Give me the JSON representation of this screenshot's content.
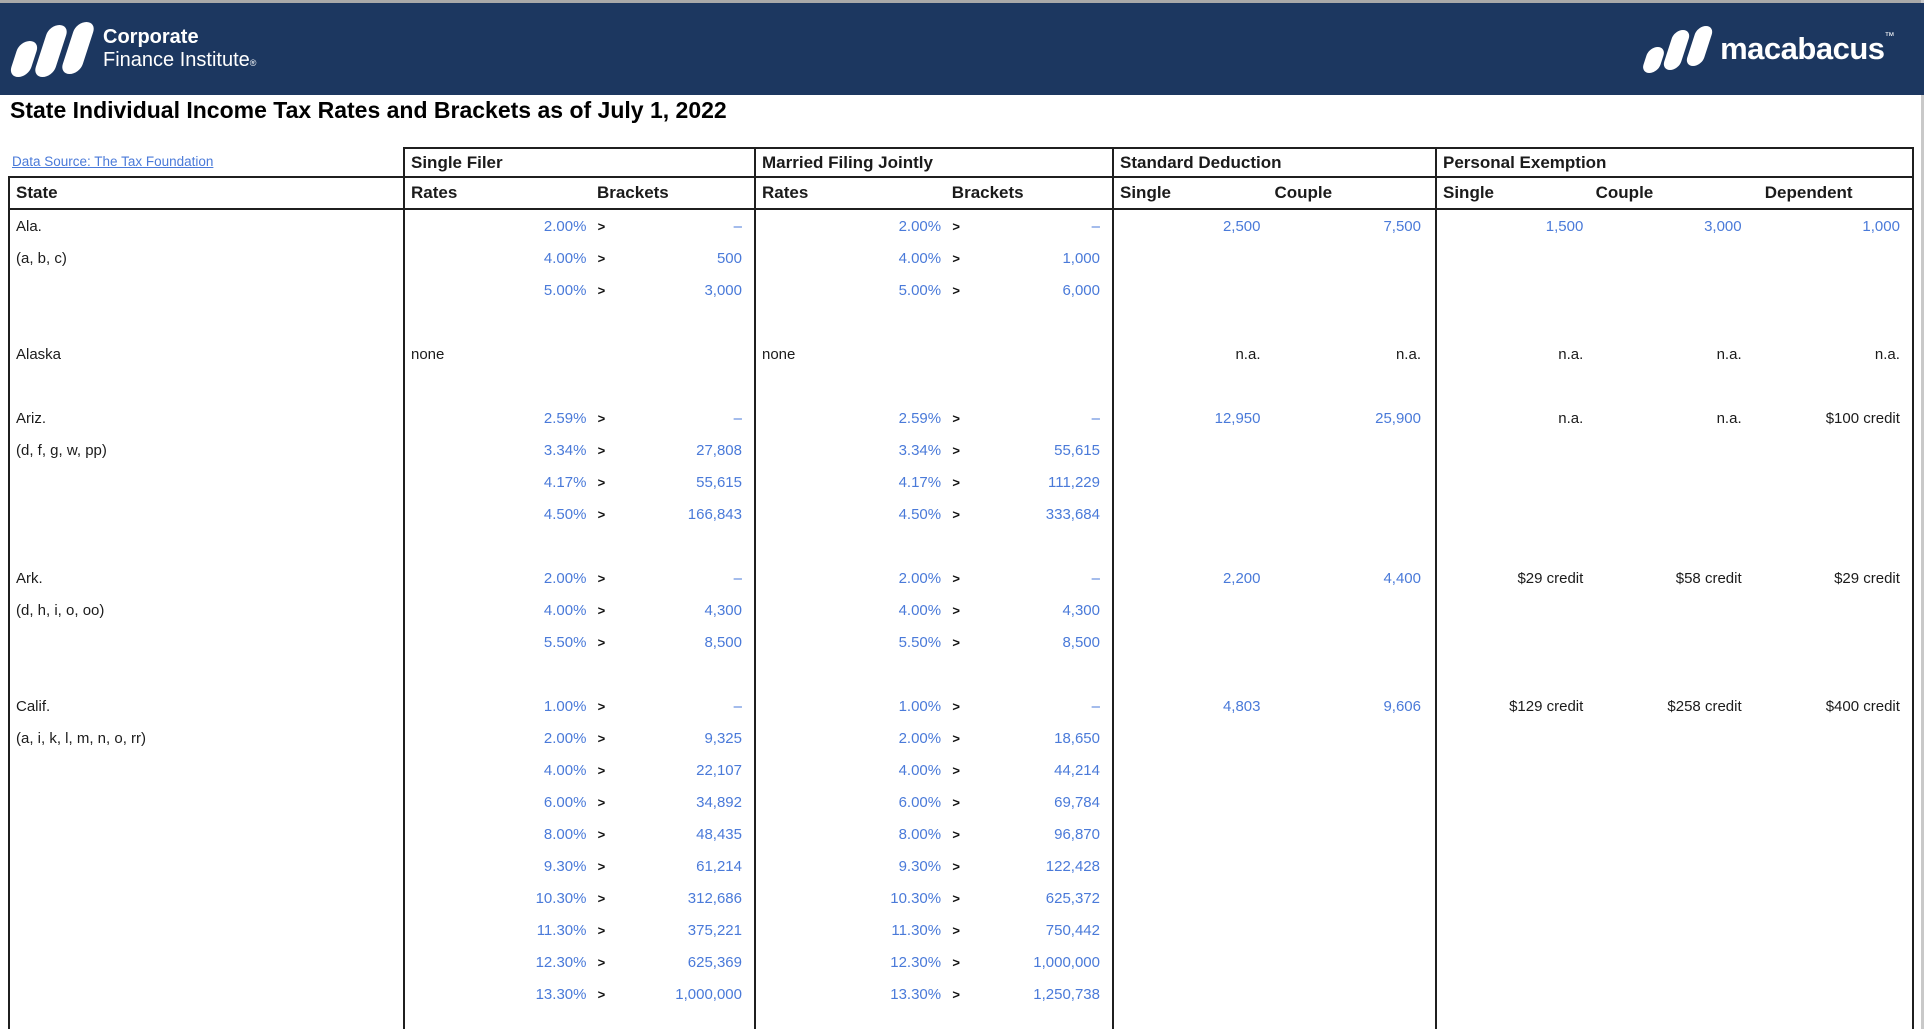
{
  "banner": {
    "cfi_line1": "Corporate",
    "cfi_line2": "Finance Institute",
    "cfi_mark": "®",
    "macabacus_text": "macabacus",
    "macabacus_mark": "™"
  },
  "page": {
    "title": "State Individual Income Tax Rates and Brackets as of July 1, 2022",
    "data_source_link": "Data Source: The Tax Foundation"
  },
  "colors": {
    "banner_navy": "#1c3760",
    "value_blue": "#4a7ad9",
    "text_black": "#1b1b1b",
    "border_black": "#1f1f1f"
  },
  "table": {
    "state_header": "State",
    "sections": [
      {
        "label": "Single Filer",
        "sub": [
          "Rates",
          "Brackets"
        ]
      },
      {
        "label": "Married Filing Jointly",
        "sub": [
          "Rates",
          "Brackets"
        ]
      },
      {
        "label": "Standard Deduction",
        "sub": [
          "Single",
          "Couple"
        ]
      },
      {
        "label": "Personal Exemption",
        "sub": [
          "Single",
          "Couple",
          "Dependent"
        ]
      }
    ],
    "rows": [
      {
        "state": "Ala.",
        "notes": "(a, b, c)",
        "single": {
          "entries": [
            [
              "2.00%",
              "–"
            ],
            [
              "4.00%",
              "500"
            ],
            [
              "5.00%",
              "3,000"
            ]
          ]
        },
        "married": {
          "entries": [
            [
              "2.00%",
              "–"
            ],
            [
              "4.00%",
              "1,000"
            ],
            [
              "5.00%",
              "6,000"
            ]
          ]
        },
        "std": [
          "2,500",
          "7,500"
        ],
        "pe": [
          "1,500",
          "3,000",
          "1,000"
        ]
      },
      {
        "state": "Alaska",
        "notes": "",
        "single": {
          "label": "none"
        },
        "married": {
          "label": "none"
        },
        "std": [
          "n.a.",
          "n.a."
        ],
        "pe": [
          "n.a.",
          "n.a.",
          "n.a."
        ]
      },
      {
        "state": "Ariz.",
        "notes": "(d, f, g, w, pp)",
        "single": {
          "entries": [
            [
              "2.59%",
              "–"
            ],
            [
              "3.34%",
              "27,808"
            ],
            [
              "4.17%",
              "55,615"
            ],
            [
              "4.50%",
              "166,843"
            ]
          ]
        },
        "married": {
          "entries": [
            [
              "2.59%",
              "–"
            ],
            [
              "3.34%",
              "55,615"
            ],
            [
              "4.17%",
              "111,229"
            ],
            [
              "4.50%",
              "333,684"
            ]
          ]
        },
        "std": [
          "12,950",
          "25,900"
        ],
        "pe": [
          "n.a.",
          "n.a.",
          "$100 credit"
        ]
      },
      {
        "state": "Ark.",
        "notes": "(d, h, i, o, oo)",
        "single": {
          "entries": [
            [
              "2.00%",
              "–"
            ],
            [
              "4.00%",
              "4,300"
            ],
            [
              "5.50%",
              "8,500"
            ]
          ]
        },
        "married": {
          "entries": [
            [
              "2.00%",
              "–"
            ],
            [
              "4.00%",
              "4,300"
            ],
            [
              "5.50%",
              "8,500"
            ]
          ]
        },
        "std": [
          "2,200",
          "4,400"
        ],
        "pe": [
          "$29 credit",
          "$58 credit",
          "$29 credit"
        ]
      },
      {
        "state": "Calif.",
        "notes": "(a, i, k, l, m, n, o, rr)",
        "single": {
          "entries": [
            [
              "1.00%",
              "–"
            ],
            [
              "2.00%",
              "9,325"
            ],
            [
              "4.00%",
              "22,107"
            ],
            [
              "6.00%",
              "34,892"
            ],
            [
              "8.00%",
              "48,435"
            ],
            [
              "9.30%",
              "61,214"
            ],
            [
              "10.30%",
              "312,686"
            ],
            [
              "11.30%",
              "375,221"
            ],
            [
              "12.30%",
              "625,369"
            ],
            [
              "13.30%",
              "1,000,000"
            ]
          ]
        },
        "married": {
          "entries": [
            [
              "1.00%",
              "–"
            ],
            [
              "2.00%",
              "18,650"
            ],
            [
              "4.00%",
              "44,214"
            ],
            [
              "6.00%",
              "69,784"
            ],
            [
              "8.00%",
              "96,870"
            ],
            [
              "9.30%",
              "122,428"
            ],
            [
              "10.30%",
              "625,372"
            ],
            [
              "11.30%",
              "750,442"
            ],
            [
              "12.30%",
              "1,000,000"
            ],
            [
              "13.30%",
              "1,250,738"
            ]
          ]
        },
        "std": [
          "4,803",
          "9,606"
        ],
        "pe": [
          "$129 credit",
          "$258 credit",
          "$400 credit"
        ]
      }
    ]
  }
}
